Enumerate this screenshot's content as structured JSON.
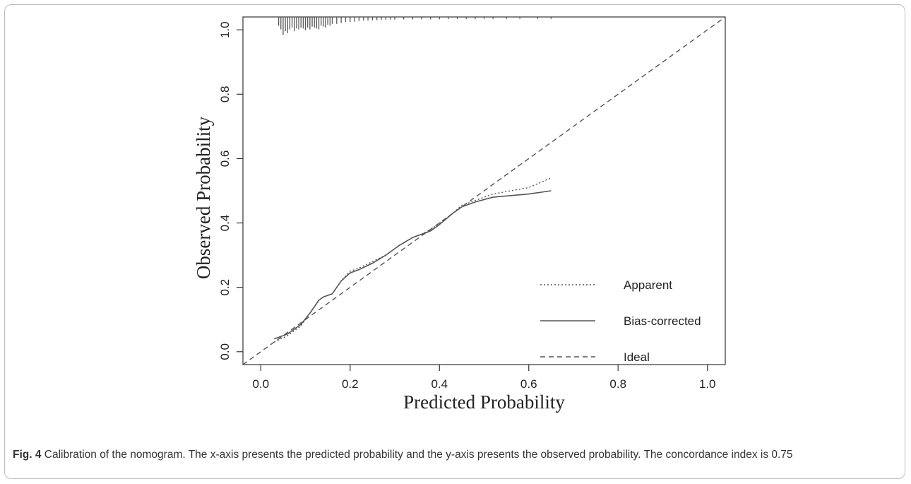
{
  "chart_data": {
    "type": "line",
    "xlabel": "Predicted Probability",
    "ylabel": "Observed Probability",
    "xlim": [
      -0.04,
      1.04
    ],
    "ylim": [
      -0.04,
      1.04
    ],
    "x_ticks": [
      "0.0",
      "0.2",
      "0.4",
      "0.6",
      "0.8",
      "1.0"
    ],
    "y_ticks": [
      "0.0",
      "0.2",
      "0.4",
      "0.6",
      "0.8",
      "1.0"
    ],
    "grid": false,
    "legend_position": "bottom-right",
    "series": [
      {
        "name": "Apparent",
        "style": "dotted",
        "x": [
          0.03,
          0.06,
          0.09,
          0.11,
          0.13,
          0.14,
          0.16,
          0.18,
          0.2,
          0.22,
          0.25,
          0.28,
          0.31,
          0.34,
          0.36,
          0.38,
          0.4,
          0.43,
          0.45,
          0.48,
          0.52,
          0.56,
          0.6,
          0.65
        ],
        "y": [
          0.03,
          0.05,
          0.08,
          0.12,
          0.16,
          0.17,
          0.18,
          0.22,
          0.25,
          0.26,
          0.28,
          0.3,
          0.33,
          0.355,
          0.365,
          0.38,
          0.4,
          0.43,
          0.455,
          0.47,
          0.49,
          0.5,
          0.51,
          0.54
        ]
      },
      {
        "name": "Bias-corrected",
        "style": "solid",
        "x": [
          0.03,
          0.06,
          0.09,
          0.11,
          0.13,
          0.14,
          0.16,
          0.18,
          0.2,
          0.22,
          0.25,
          0.28,
          0.31,
          0.34,
          0.36,
          0.38,
          0.4,
          0.43,
          0.45,
          0.48,
          0.52,
          0.56,
          0.6,
          0.65
        ],
        "y": [
          0.04,
          0.055,
          0.085,
          0.12,
          0.16,
          0.17,
          0.18,
          0.22,
          0.245,
          0.255,
          0.275,
          0.3,
          0.33,
          0.355,
          0.365,
          0.375,
          0.395,
          0.43,
          0.45,
          0.465,
          0.48,
          0.485,
          0.49,
          0.5
        ]
      },
      {
        "name": "Ideal",
        "style": "dashed",
        "x": [
          -0.04,
          1.04
        ],
        "y": [
          -0.04,
          1.04
        ]
      }
    ],
    "rug": {
      "x": [
        0.04,
        0.045,
        0.05,
        0.055,
        0.06,
        0.065,
        0.07,
        0.075,
        0.08,
        0.085,
        0.09,
        0.095,
        0.1,
        0.105,
        0.11,
        0.115,
        0.12,
        0.125,
        0.13,
        0.135,
        0.14,
        0.145,
        0.15,
        0.155,
        0.16,
        0.17,
        0.18,
        0.19,
        0.2,
        0.21,
        0.22,
        0.23,
        0.24,
        0.25,
        0.26,
        0.27,
        0.28,
        0.29,
        0.3,
        0.32,
        0.34,
        0.36,
        0.38,
        0.4,
        0.42,
        0.44,
        0.46,
        0.48,
        0.5,
        0.52,
        0.55,
        0.58,
        0.62,
        0.65
      ],
      "density": [
        0.4,
        0.6,
        0.9,
        0.7,
        0.8,
        0.6,
        0.5,
        0.7,
        0.55,
        0.6,
        0.5,
        0.55,
        0.65,
        0.5,
        0.6,
        0.45,
        0.5,
        0.55,
        0.6,
        0.4,
        0.45,
        0.5,
        0.35,
        0.4,
        0.3,
        0.3,
        0.25,
        0.2,
        0.2,
        0.18,
        0.15,
        0.12,
        0.12,
        0.1,
        0.1,
        0.08,
        0.08,
        0.07,
        0.07,
        0.06,
        0.06,
        0.05,
        0.05,
        0.05,
        0.04,
        0.04,
        0.04,
        0.04,
        0.03,
        0.03,
        0.03,
        0.03,
        0.03,
        0.03
      ]
    }
  },
  "caption": {
    "label": "Fig. 4",
    "text": " Calibration of the nomogram. The x-axis presents the predicted probability and the y-axis presents the observed probability. The concordance index is 0.75"
  },
  "colors": {
    "line": "#555555",
    "axis": "#333333",
    "border": "#bdbdbd"
  }
}
